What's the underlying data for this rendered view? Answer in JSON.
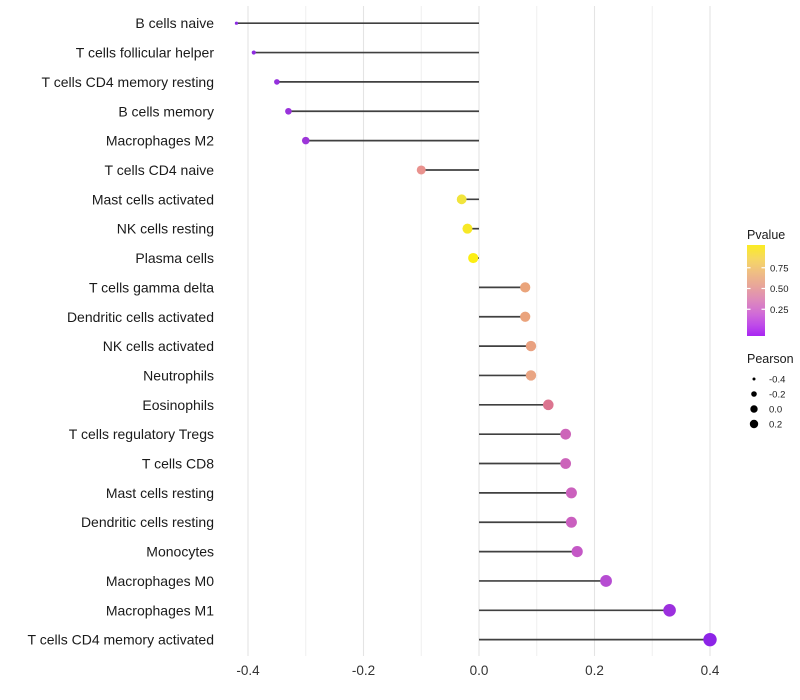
{
  "figure": {
    "background": "#ffffff"
  },
  "chart_data": {
    "type": "scatter",
    "variant": "lollipop",
    "orientation": "horizontal",
    "title": "",
    "xlabel": "",
    "ylabel": "",
    "xlim": [
      -0.452,
      0.452
    ],
    "grid": "vertical light-gray gridlines every 0.1, no axis lines, white panel",
    "gridline_values": [
      -0.4,
      -0.3,
      -0.2,
      -0.1,
      0.0,
      0.1,
      0.2,
      0.3,
      0.4
    ],
    "x_ticks": [
      {
        "value": -0.4,
        "label": "-0.4"
      },
      {
        "value": -0.2,
        "label": "-0.2"
      },
      {
        "value": 0.0,
        "label": "0.0"
      },
      {
        "value": 0.2,
        "label": "0.2"
      },
      {
        "value": 0.4,
        "label": "0.4"
      }
    ],
    "stem_color": "#404040",
    "points": [
      {
        "category": "B cells naive",
        "pearson": -0.42,
        "color": "#8B2BE1",
        "diameter": 3.2
      },
      {
        "category": "T cells follicular helper",
        "pearson": -0.39,
        "color": "#8E2CDF",
        "diameter": 4.2
      },
      {
        "category": "T cells CD4 memory resting",
        "pearson": -0.35,
        "color": "#9530DD",
        "diameter": 5.6
      },
      {
        "category": "B cells memory",
        "pearson": -0.33,
        "color": "#9933DB",
        "diameter": 6.6
      },
      {
        "category": "Macrophages M2",
        "pearson": -0.3,
        "color": "#9D36D9",
        "diameter": 7.6
      },
      {
        "category": "T cells CD4 naive",
        "pearson": -0.1,
        "color": "#E9928E",
        "diameter": 9.0
      },
      {
        "category": "Mast cells activated",
        "pearson": -0.03,
        "color": "#F1E43C",
        "diameter": 9.8
      },
      {
        "category": "NK cells resting",
        "pearson": -0.02,
        "color": "#F7E826",
        "diameter": 10.0
      },
      {
        "category": "Plasma cells",
        "pearson": -0.01,
        "color": "#FCEE13",
        "diameter": 10.2
      },
      {
        "category": "T cells gamma delta",
        "pearson": 0.08,
        "color": "#EAA47B",
        "diameter": 10.2
      },
      {
        "category": "Dendritic cells activated",
        "pearson": 0.08,
        "color": "#EAA37C",
        "diameter": 10.2
      },
      {
        "category": "NK cells activated",
        "pearson": 0.09,
        "color": "#E9A180",
        "diameter": 10.4
      },
      {
        "category": "Neutrophils",
        "pearson": 0.09,
        "color": "#E9A583",
        "diameter": 10.4
      },
      {
        "category": "Eosinophils",
        "pearson": 0.12,
        "color": "#DC7590",
        "diameter": 10.6
      },
      {
        "category": "T cells regulatory  Tregs",
        "pearson": 0.15,
        "color": "#CD64B9",
        "diameter": 10.8
      },
      {
        "category": "T cells CD8",
        "pearson": 0.15,
        "color": "#CC63BA",
        "diameter": 10.8
      },
      {
        "category": "Mast cells resting",
        "pearson": 0.16,
        "color": "#CB61BD",
        "diameter": 11.0
      },
      {
        "category": "Dendritic cells resting",
        "pearson": 0.16,
        "color": "#CA5FBF",
        "diameter": 11.0
      },
      {
        "category": "Monocytes",
        "pearson": 0.17,
        "color": "#C458C6",
        "diameter": 11.2
      },
      {
        "category": "Macrophages M0",
        "pearson": 0.22,
        "color": "#B64CD2",
        "diameter": 11.8
      },
      {
        "category": "Macrophages M1",
        "pearson": 0.33,
        "color": "#9C30DE",
        "diameter": 12.6
      },
      {
        "category": "T cells CD4 memory activated",
        "pearson": 0.4,
        "color": "#8D24E7",
        "diameter": 13.4
      }
    ],
    "legend_position": "right",
    "legends": {
      "pvalue": {
        "title": "Pvalue",
        "ticks": [
          {
            "label": "0.75",
            "value": 0.75
          },
          {
            "label": "0.50",
            "value": 0.5
          },
          {
            "label": "0.25",
            "value": 0.25
          }
        ],
        "gradient_top_to_bottom": [
          {
            "offset": 0.0,
            "color": "#FBEC22"
          },
          {
            "offset": 0.15,
            "color": "#F6D862"
          },
          {
            "offset": 0.3,
            "color": "#EFBE83"
          },
          {
            "offset": 0.45,
            "color": "#E8A59A"
          },
          {
            "offset": 0.6,
            "color": "#DE8BBA"
          },
          {
            "offset": 0.75,
            "color": "#D16DD6"
          },
          {
            "offset": 0.88,
            "color": "#BF4BE9"
          },
          {
            "offset": 1.0,
            "color": "#A826F2"
          }
        ]
      },
      "pearson": {
        "title": "Pearson",
        "dot_color": "#000000",
        "entries": [
          {
            "label": "-0.4",
            "diameter": 3.0
          },
          {
            "label": "-0.2",
            "diameter": 5.6
          },
          {
            "label": "0.0",
            "diameter": 7.4
          },
          {
            "label": "0.2",
            "diameter": 8.4
          }
        ]
      }
    },
    "text_colors": {
      "labels": "#1a1a1a",
      "axis_ticks": "#333333",
      "legend": "#1a1a1a"
    }
  }
}
